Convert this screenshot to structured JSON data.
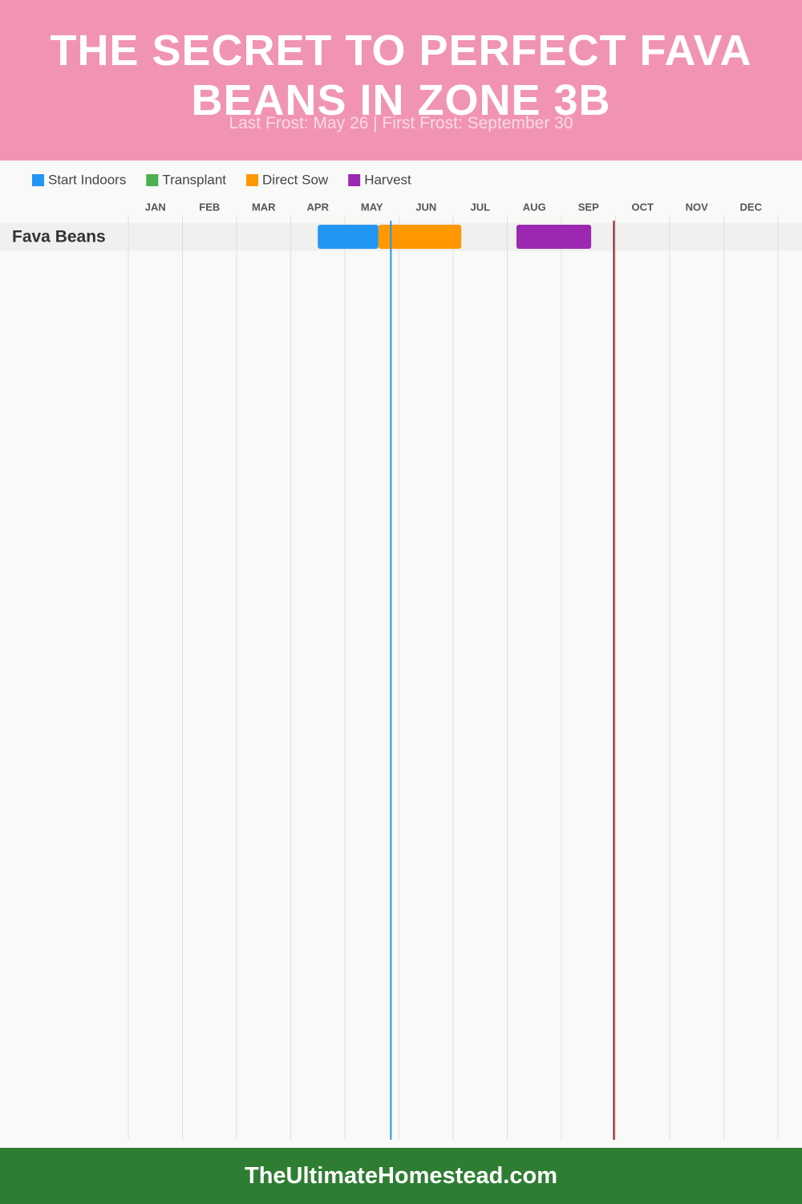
{
  "chart_data": {
    "type": "gantt",
    "title": "The Secret to Perfect Fava Beans in Zone 3B",
    "subtitle": "Last Frost: May 26 | First Frost: September 30",
    "footer": "TheUltimateHomestead.com",
    "categories": [
      "Fava Beans"
    ],
    "series": [
      {
        "name": "Start Indoors",
        "color": "#2196f3",
        "start": [
          3.5
        ],
        "end": [
          4.62
        ]
      },
      {
        "name": "Transplant",
        "color": "#4caf50",
        "start": [
          null
        ],
        "end": [
          null
        ]
      },
      {
        "name": "Direct Sow",
        "color": "#ff9800",
        "start": [
          4.62
        ],
        "end": [
          6.15
        ]
      },
      {
        "name": "Harvest",
        "color": "#9c27b0",
        "start": [
          7.17
        ],
        "end": [
          8.55
        ]
      }
    ],
    "xlim": [
      0,
      12
    ],
    "xticks": [
      {
        "value": 0.5,
        "label": "JAN"
      },
      {
        "value": 1.5,
        "label": "FEB"
      },
      {
        "value": 2.5,
        "label": "MAR"
      },
      {
        "value": 3.5,
        "label": "APR"
      },
      {
        "value": 4.5,
        "label": "MAY"
      },
      {
        "value": 5.5,
        "label": "JUN"
      },
      {
        "value": 6.5,
        "label": "JUL"
      },
      {
        "value": 7.5,
        "label": "AUG"
      },
      {
        "value": 8.5,
        "label": "SEP"
      },
      {
        "value": 9.5,
        "label": "OCT"
      },
      {
        "value": 10.5,
        "label": "NOV"
      },
      {
        "value": 11.5,
        "label": "DEC"
      }
    ],
    "x_gridlines": [
      0,
      1,
      2,
      3,
      4,
      5,
      6,
      7,
      8,
      9,
      10,
      11,
      12
    ],
    "grid": true,
    "reference_lines": [
      {
        "value": 4.85,
        "color": "#2196f3"
      },
      {
        "value": 8.97,
        "color": "#8b1a1a"
      }
    ]
  }
}
